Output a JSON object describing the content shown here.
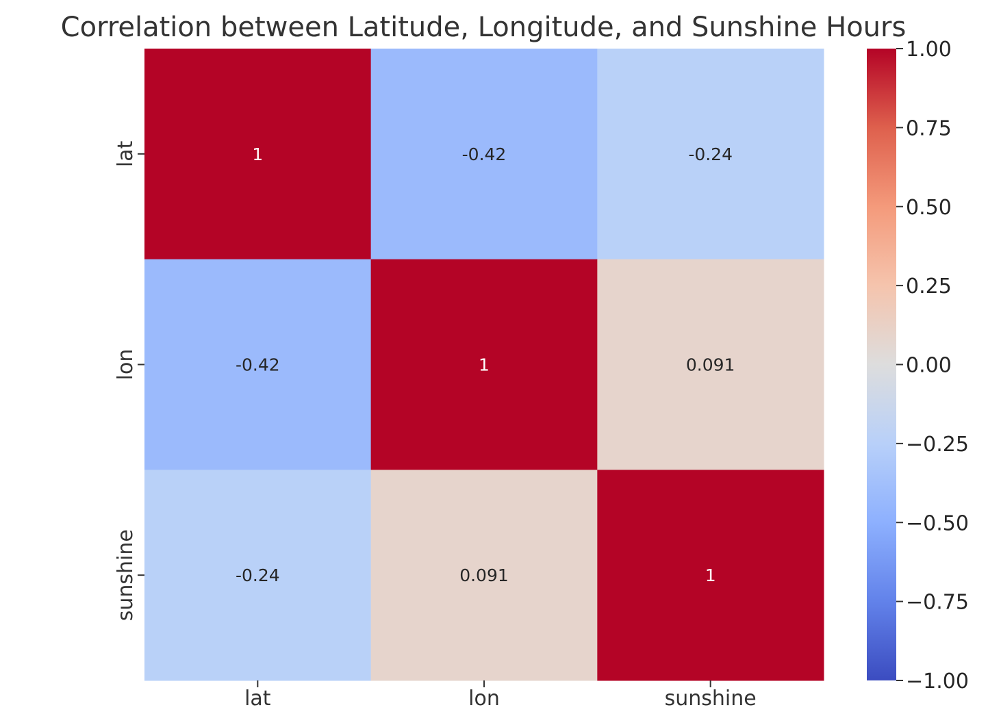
{
  "chart_data": {
    "type": "heatmap",
    "title": "Correlation between Latitude, Longitude, and Sunshine Hours",
    "x_categories": [
      "lat",
      "lon",
      "sunshine"
    ],
    "y_categories": [
      "lat",
      "lon",
      "sunshine"
    ],
    "values": [
      [
        1,
        -0.42,
        -0.24
      ],
      [
        -0.42,
        1,
        0.091
      ],
      [
        -0.24,
        0.091,
        1
      ]
    ],
    "annotations": [
      [
        "1",
        "-0.42",
        "-0.24"
      ],
      [
        "-0.42",
        "1",
        "0.091"
      ],
      [
        "-0.24",
        "0.091",
        "1"
      ]
    ],
    "colormap": "coolwarm",
    "vmin": -1,
    "vmax": 1,
    "colorbar": {
      "ticks": [
        1.0,
        0.75,
        0.5,
        0.25,
        0.0,
        -0.25,
        -0.5,
        -0.75,
        -1.0
      ],
      "tick_labels": [
        "1.00",
        "0.75",
        "0.50",
        "0.25",
        "0.00",
        "−0.25",
        "−0.50",
        "−0.75",
        "−1.00"
      ],
      "placement": "right"
    }
  }
}
